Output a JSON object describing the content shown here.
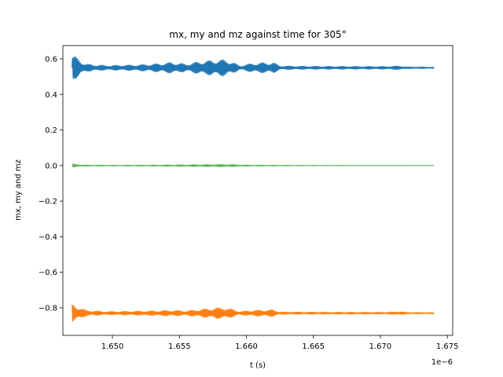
{
  "chart_data": {
    "type": "line",
    "title": "mx, my and mz against time for 305°",
    "xlabel": "t (s)",
    "ylabel": "mx, my and mz",
    "x_offset_label": "1e−6",
    "xlim": [
      1.6463,
      1.6754
    ],
    "ylim": [
      -0.955,
      0.675
    ],
    "x_ticks": [
      1.65,
      1.655,
      1.66,
      1.665,
      1.67,
      1.675
    ],
    "x_tick_labels": [
      "1.650",
      "1.655",
      "1.660",
      "1.665",
      "1.670",
      "1.675"
    ],
    "y_ticks": [
      0.6,
      0.4,
      0.2,
      0.0,
      -0.2,
      -0.4,
      -0.6,
      -0.8
    ],
    "y_tick_labels": [
      "0.6",
      "0.4",
      "0.2",
      "0.0",
      "−0.2",
      "−0.4",
      "−0.6",
      "−0.8"
    ],
    "grid": false,
    "legend": "none",
    "x_range": [
      1.647,
      1.674
    ],
    "series": [
      {
        "color": "#1f77b4",
        "stroke": 1.5,
        "baseline": 0.55,
        "envelope": [
          [
            1.647,
            0.07
          ],
          [
            1.6475,
            0.05
          ],
          [
            1.648,
            0.02
          ],
          [
            1.6495,
            0.012
          ],
          [
            1.6515,
            0.015
          ],
          [
            1.653,
            0.02
          ],
          [
            1.6545,
            0.03
          ],
          [
            1.6555,
            0.02
          ],
          [
            1.6565,
            0.035
          ],
          [
            1.6578,
            0.045
          ],
          [
            1.6585,
            0.045
          ],
          [
            1.659,
            0.03
          ],
          [
            1.6595,
            0.01
          ],
          [
            1.6605,
            0.025
          ],
          [
            1.662,
            0.03
          ],
          [
            1.6625,
            0.01
          ],
          [
            1.664,
            0.008
          ],
          [
            1.668,
            0.007
          ],
          [
            1.6705,
            0.007
          ],
          [
            1.6715,
            0.01
          ],
          [
            1.672,
            0.004
          ],
          [
            1.674,
            0.003
          ]
        ]
      },
      {
        "color": "#2ca02c",
        "stroke": 0.8,
        "baseline": 0.0,
        "envelope": [
          [
            1.647,
            0.01
          ],
          [
            1.648,
            0.004
          ],
          [
            1.65,
            0.003
          ],
          [
            1.653,
            0.004
          ],
          [
            1.6585,
            0.008
          ],
          [
            1.66,
            0.004
          ],
          [
            1.664,
            0.002
          ],
          [
            1.674,
            0.001
          ]
        ]
      },
      {
        "color": "#ff7f0e",
        "stroke": 1.5,
        "baseline": -0.83,
        "envelope": [
          [
            1.647,
            0.05
          ],
          [
            1.6475,
            0.035
          ],
          [
            1.648,
            0.015
          ],
          [
            1.6495,
            0.008
          ],
          [
            1.6515,
            0.01
          ],
          [
            1.653,
            0.012
          ],
          [
            1.6545,
            0.015
          ],
          [
            1.6555,
            0.012
          ],
          [
            1.6565,
            0.02
          ],
          [
            1.6578,
            0.03
          ],
          [
            1.6585,
            0.03
          ],
          [
            1.659,
            0.02
          ],
          [
            1.6595,
            0.008
          ],
          [
            1.6605,
            0.015
          ],
          [
            1.662,
            0.018
          ],
          [
            1.6625,
            0.006
          ],
          [
            1.664,
            0.005
          ],
          [
            1.668,
            0.004
          ],
          [
            1.6705,
            0.004
          ],
          [
            1.6715,
            0.008
          ],
          [
            1.672,
            0.003
          ],
          [
            1.674,
            0.002
          ]
        ]
      }
    ]
  }
}
